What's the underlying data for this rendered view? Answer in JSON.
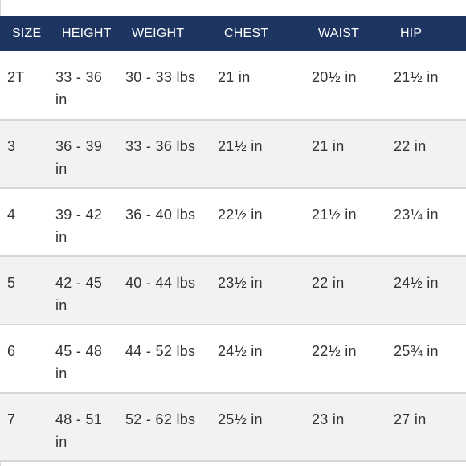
{
  "header": {
    "size": "SIZE",
    "height": "HEIGHT",
    "weight": "WEIGHT",
    "chest": "CHEST",
    "waist": "WAIST",
    "hip": "HIP"
  },
  "rows": [
    {
      "size": "2T",
      "height": "33 - 36 in",
      "weight": "30 - 33 lbs",
      "chest": "21 in",
      "waist": "20½ in",
      "hip": "21½ in"
    },
    {
      "size": "3",
      "height": "36 - 39 in",
      "weight": "33 - 36 lbs",
      "chest": "21½ in",
      "waist": "21 in",
      "hip": "22 in"
    },
    {
      "size": "4",
      "height": "39 - 42 in",
      "weight": "36 - 40 lbs",
      "chest": "22½ in",
      "waist": "21½ in",
      "hip": "23¼ in"
    },
    {
      "size": "5",
      "height": "42 - 45 in",
      "weight": "40 - 44 lbs",
      "chest": "23½ in",
      "waist": "22 in",
      "hip": "24½ in"
    },
    {
      "size": "6",
      "height": "45 - 48 in",
      "weight": "44 - 52 lbs",
      "chest": "24½ in",
      "waist": "22½ in",
      "hip": "25¾ in"
    },
    {
      "size": "7",
      "height": "48 - 51 in",
      "weight": "52 - 62 lbs",
      "chest": "25½ in",
      "waist": "23 in",
      "hip": "27 in"
    }
  ],
  "colors": {
    "header_bg": "#1d3560",
    "header_text": "#ffffff",
    "row_alt_bg": "#f2f2f2",
    "text": "#333333"
  }
}
